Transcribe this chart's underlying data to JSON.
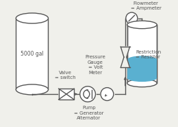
{
  "bg_color": "#f0f0eb",
  "line_color": "#555555",
  "tank_right_water_color": "#5ab0d0",
  "label_5000": "5000 gal",
  "label_valve": "Valve\n= switch",
  "label_pump": "Pump\n= Generator\nAlternator",
  "label_pressure": "Pressure\nGauge\n= Volt\nMeter",
  "label_flowmeter": "Flowmeter\n= Ampmeter",
  "label_restriction": "Restriction\n= Resistor",
  "font_size": 5.0
}
